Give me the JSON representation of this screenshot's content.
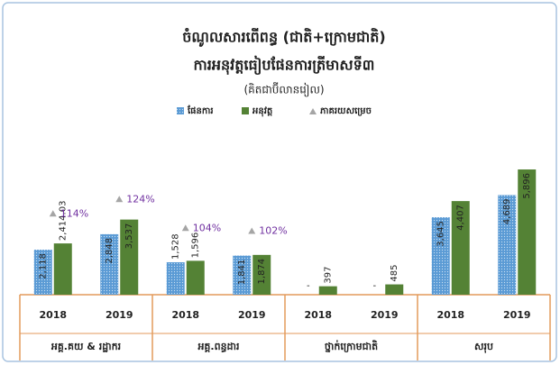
{
  "chart_data": {
    "type": "bar",
    "title": "ចំណូលសារពើពន្ធ (ជាតិ+ក្រោមជាតិ)",
    "subtitle": "ការអនុវត្តធៀបផែនការត្រីមាសទី៣",
    "note": "(គិតជាប៊ីលានរៀល)",
    "categories": [
      "2018",
      "2019",
      "2018",
      "2019",
      "2018",
      "2019",
      "2018",
      "2019"
    ],
    "groups": [
      "អគ្គ.គយ & រដ្ឋាករ",
      "អគ្គ.ពន្ធដារ",
      "ថ្នាក់ក្រោមជាតិ",
      "សរុប"
    ],
    "series": [
      {
        "name": "ផែនការ",
        "color": "#5b9bd5",
        "values": [
          2118,
          2848,
          1528,
          1841,
          null,
          null,
          3645,
          4689
        ],
        "value_labels": [
          "2,118",
          "2,848",
          "1,528",
          "1,841",
          "-",
          "-",
          "3,645",
          "4,689"
        ]
      },
      {
        "name": "អនុវត្ត",
        "color": "#548235",
        "values": [
          2414.03,
          3537,
          1596,
          1874,
          397,
          485,
          4407,
          5896
        ],
        "value_labels": [
          "2,414.03",
          "3,537",
          "1,596",
          "1,874",
          "397",
          "485",
          "4,407",
          "5,896"
        ]
      },
      {
        "name": "ភាគរយសម្រេច",
        "color": "#a5a5a5",
        "axis": "y2",
        "values": [
          114,
          124,
          104,
          102,
          null,
          null,
          null,
          null
        ],
        "value_labels": [
          "114%",
          "124%",
          "104%",
          "102%",
          null,
          null,
          null,
          null
        ]
      }
    ],
    "ylim": [
      0,
      7000
    ],
    "y2lim": [
      58,
      161
    ],
    "legend": "top",
    "label_color": "#7030a0",
    "frame_color": "#e39a5b"
  }
}
